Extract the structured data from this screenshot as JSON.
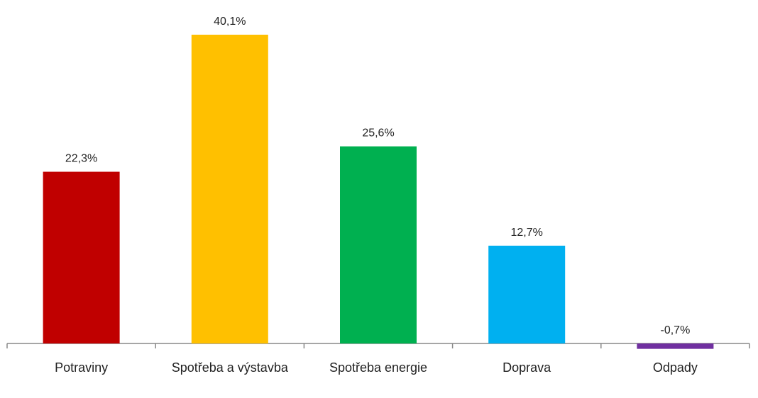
{
  "chart_data": {
    "type": "bar",
    "categories": [
      "Potraviny",
      "Spotřeba a výstavba",
      "Spotřeba energie",
      "Doprava",
      "Odpady"
    ],
    "values": [
      22.3,
      40.1,
      25.6,
      12.7,
      -0.7
    ],
    "value_labels": [
      "22,3%",
      "40,1%",
      "25,6%",
      "12,7%",
      "-0,7%"
    ],
    "colors": [
      "#c00000",
      "#ffc000",
      "#00b050",
      "#00b0f0",
      "#7030a0"
    ]
  }
}
